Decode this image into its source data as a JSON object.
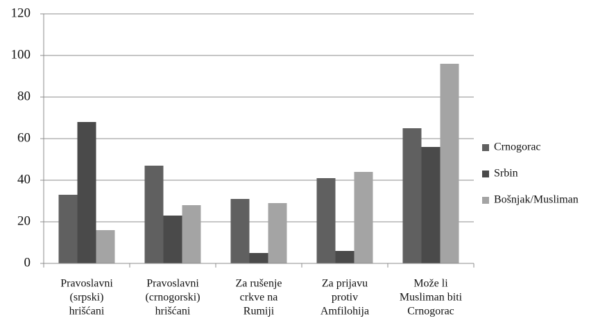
{
  "chart_data": {
    "type": "bar",
    "categories": [
      [
        "Pravoslavni",
        "(srpski)",
        "hrišćani"
      ],
      [
        "Pravoslavni",
        "(crnogorski)",
        "hrišćani"
      ],
      [
        "Za rušenje",
        "crkve na",
        "Rumiji"
      ],
      [
        "Za prijavu",
        "protiv",
        "Amfilohija"
      ],
      [
        "Može li",
        "Musliman biti",
        "Crnogorac"
      ]
    ],
    "series": [
      {
        "name": "Crnogorac",
        "color": "#606060",
        "values": [
          33,
          47,
          31,
          41,
          65
        ]
      },
      {
        "name": "Srbin",
        "color": "#4a4a4a",
        "values": [
          68,
          23,
          5,
          6,
          56
        ]
      },
      {
        "name": "Bošnjak/Musliman",
        "color": "#a4a4a4",
        "values": [
          16,
          28,
          29,
          44,
          96
        ]
      }
    ],
    "ylim": [
      0,
      120
    ],
    "yticks": [
      0,
      20,
      40,
      60,
      80,
      100,
      120
    ],
    "grid": true,
    "legend": "right"
  }
}
